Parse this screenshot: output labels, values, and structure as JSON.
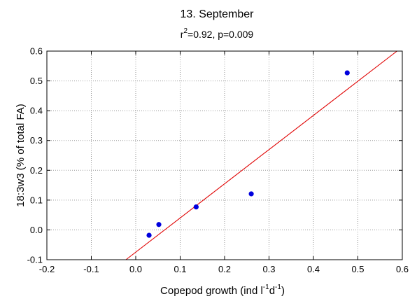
{
  "chart_data": {
    "type": "scatter",
    "title": "13. September",
    "subtitle": {
      "r_symbol": "r",
      "r_exponent": "2",
      "rest": "=0.92, p=0.009"
    },
    "xlabel": {
      "prefix": "Copepod growth (ind l",
      "exp1": "-1",
      "mid": "d",
      "exp2": "-1",
      "suffix": ")"
    },
    "ylabel": "18:3w3 (% of total FA)",
    "xlim": [
      -0.2,
      0.6
    ],
    "ylim": [
      -0.1,
      0.6
    ],
    "xticks": [
      "-0.2",
      "-0.1",
      "0.0",
      "0.1",
      "0.2",
      "0.3",
      "0.4",
      "0.5",
      "0.6"
    ],
    "yticks": [
      "-0.1",
      "0.0",
      "0.1",
      "0.2",
      "0.3",
      "0.4",
      "0.5",
      "0.6"
    ],
    "grid": true,
    "series": [
      {
        "points": [
          {
            "x": 0.03,
            "y": -0.018
          },
          {
            "x": 0.052,
            "y": 0.018
          },
          {
            "x": 0.136,
            "y": 0.077
          },
          {
            "x": 0.26,
            "y": 0.121
          },
          {
            "x": 0.476,
            "y": 0.527
          }
        ],
        "color": "#0000dd"
      }
    ],
    "fit_line": {
      "x": [
        -0.022,
        0.588
      ],
      "y": [
        -0.1,
        0.6
      ],
      "color": "#e00000"
    }
  }
}
